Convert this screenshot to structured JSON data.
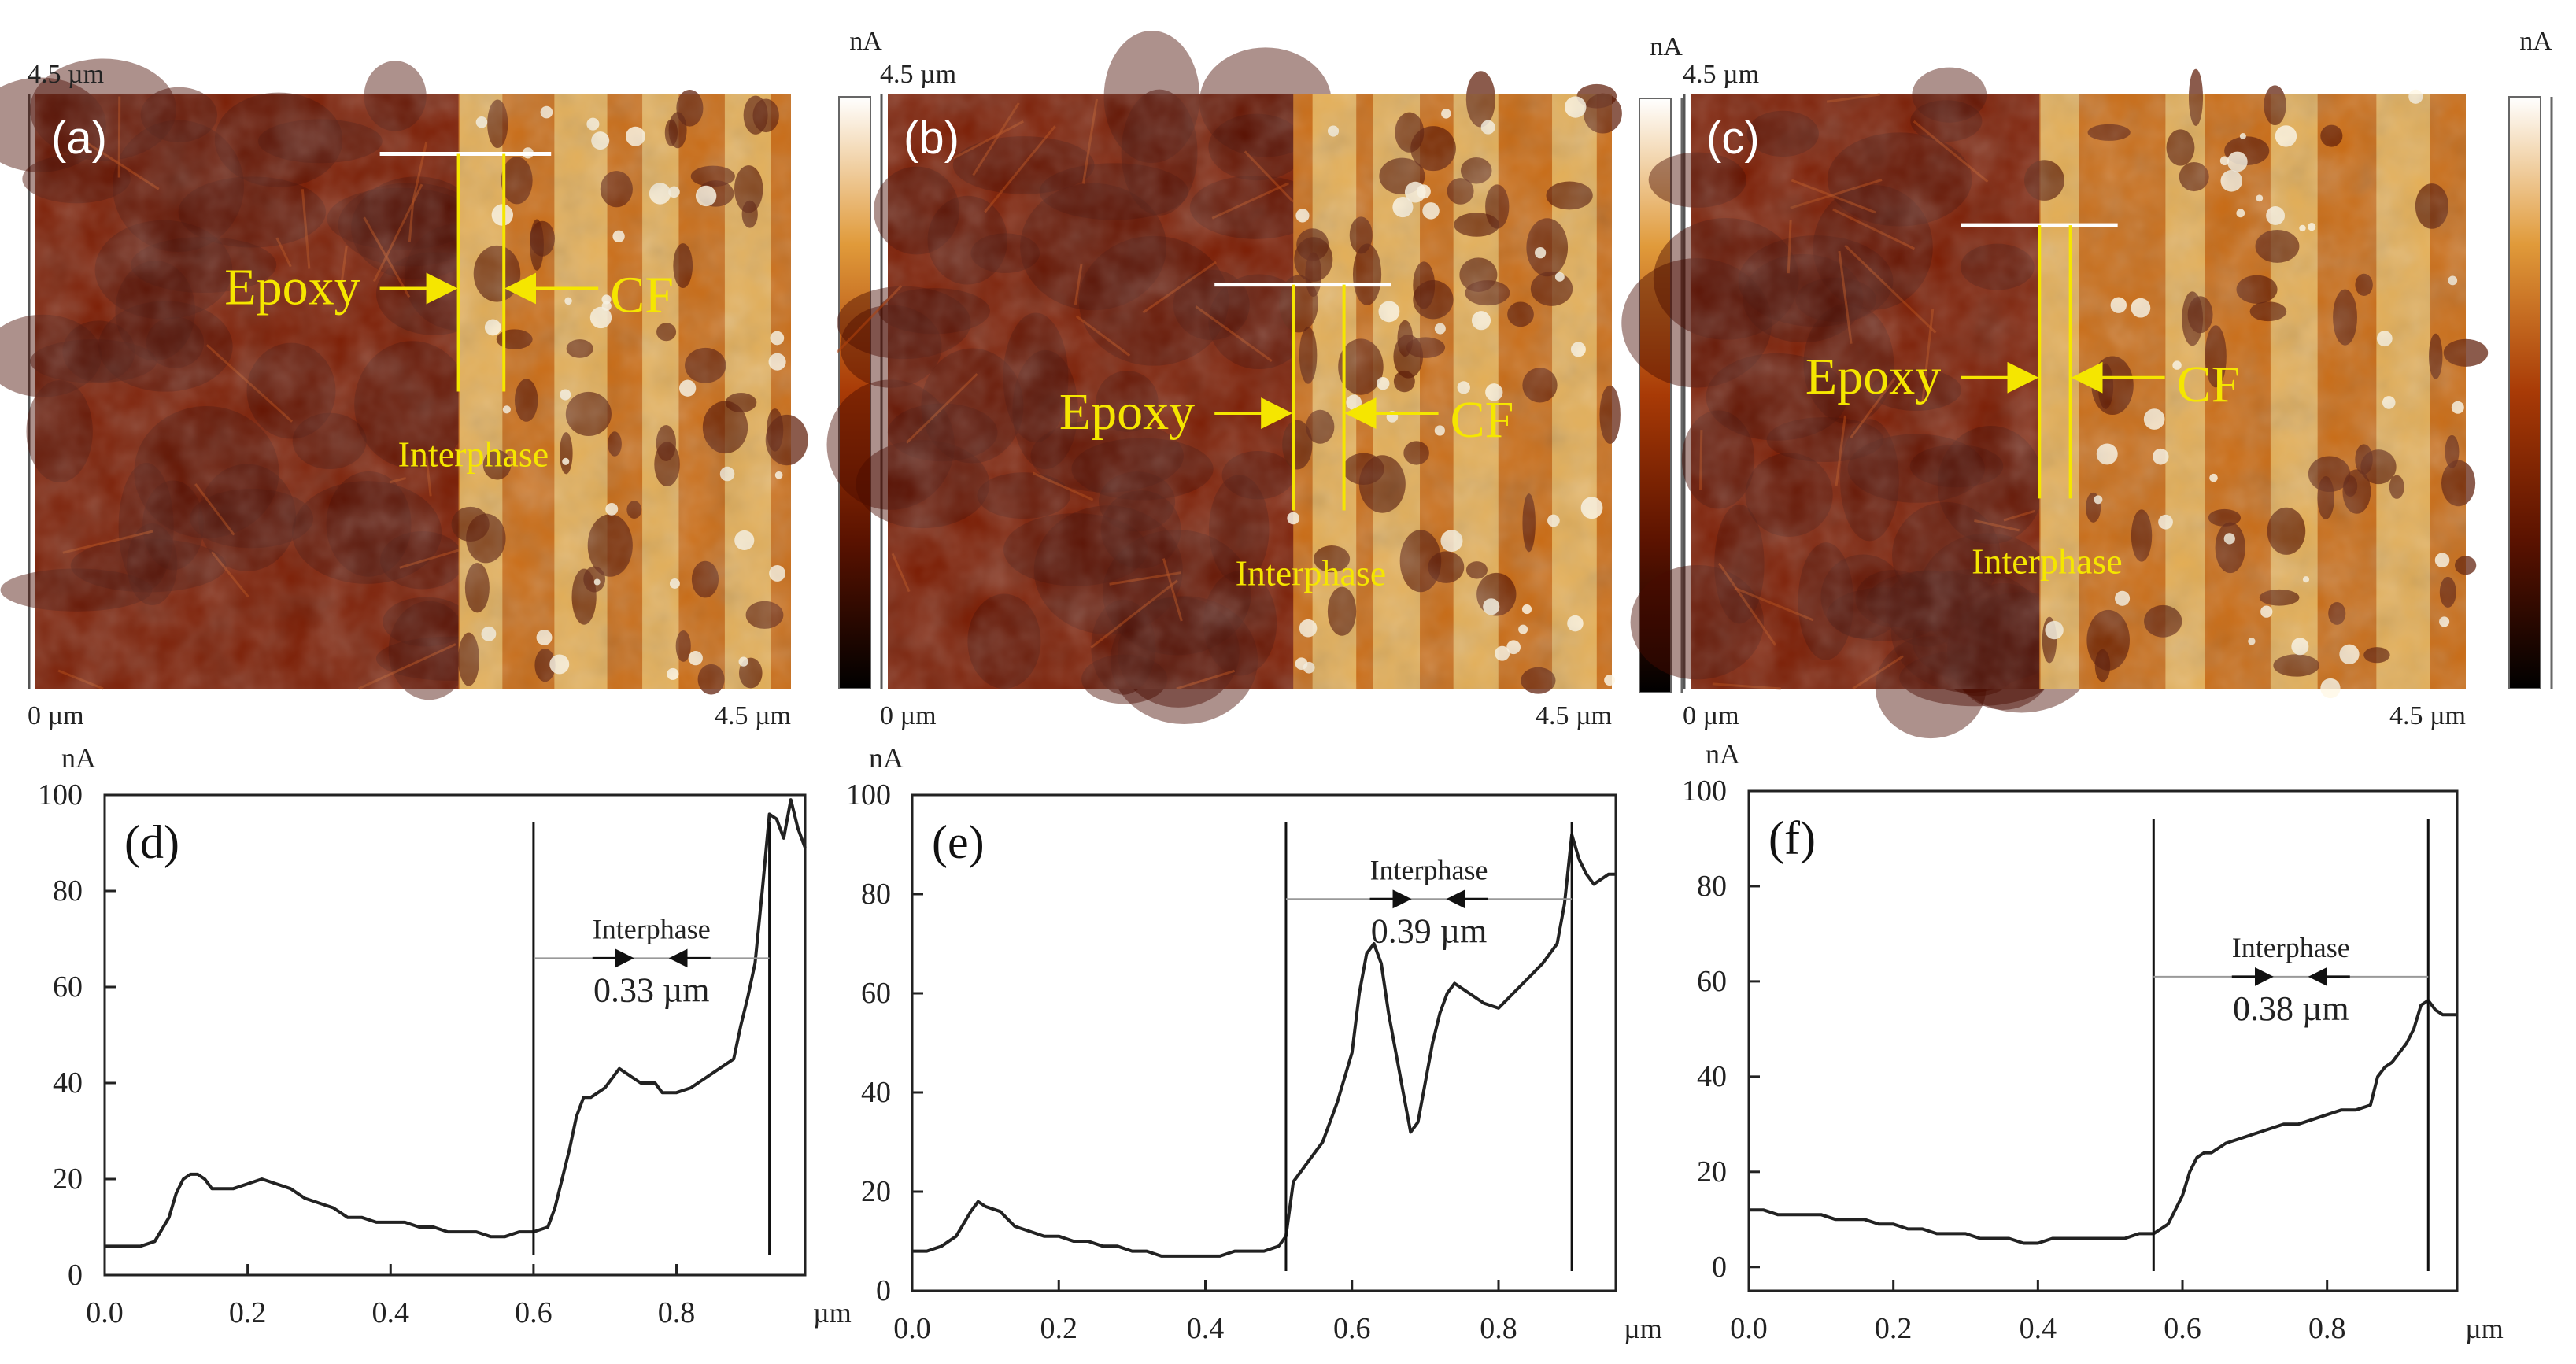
{
  "palette": {
    "afm_dark": "#1a0300",
    "afm_mid": "#7a1a00",
    "afm_orange": "#c96a12",
    "afm_light": "#f3d37a",
    "afm_white": "#fff8e6",
    "annotation": "#f5e600",
    "marker_white": "#ffffff",
    "plot_line": "#222222"
  },
  "maps": [
    {
      "panel_label": "(a)",
      "axis_top": "4.5 µm",
      "axis_origin": "0 µm",
      "axis_right": "4.5 µm",
      "colorbar_unit": "nA",
      "label_left": "Epoxy",
      "label_right": "CF",
      "label_bottom": "Interphase"
    },
    {
      "panel_label": "(b)",
      "axis_top": "4.5 µm",
      "axis_origin": "0 µm",
      "axis_right": "4.5 µm",
      "colorbar_unit": "nA",
      "label_left": "Epoxy",
      "label_right": "CF",
      "label_bottom": "Interphase"
    },
    {
      "panel_label": "(c)",
      "axis_top": "4.5 µm",
      "axis_origin": "0 µm",
      "axis_right": "4.5 µm",
      "colorbar_unit": "nA",
      "label_left": "Epoxy",
      "label_right": "CF",
      "label_bottom": "Interphase"
    }
  ],
  "chart_data": [
    {
      "type": "line",
      "panel_label": "(d)",
      "ylabel": "nA",
      "xunit": "µm",
      "xlim": [
        0.0,
        0.98
      ],
      "ylim": [
        0,
        100
      ],
      "xticks": [
        "0.0",
        "0.2",
        "0.4",
        "0.6",
        "0.8"
      ],
      "yticks": [
        "0",
        "20",
        "40",
        "60",
        "80",
        "100"
      ],
      "interphase_label": "Interphase",
      "interphase_width": "0.33 µm",
      "interphase_bounds": [
        0.6,
        0.93
      ],
      "interphase_arrow_y": 66,
      "x": [
        0.0,
        0.02,
        0.05,
        0.07,
        0.09,
        0.1,
        0.11,
        0.12,
        0.13,
        0.14,
        0.15,
        0.16,
        0.18,
        0.2,
        0.22,
        0.24,
        0.26,
        0.28,
        0.3,
        0.32,
        0.34,
        0.36,
        0.38,
        0.4,
        0.42,
        0.44,
        0.46,
        0.48,
        0.5,
        0.52,
        0.54,
        0.56,
        0.58,
        0.6,
        0.62,
        0.63,
        0.64,
        0.65,
        0.66,
        0.67,
        0.68,
        0.7,
        0.72,
        0.73,
        0.74,
        0.75,
        0.77,
        0.78,
        0.8,
        0.82,
        0.84,
        0.86,
        0.88,
        0.89,
        0.9,
        0.91,
        0.92,
        0.93,
        0.94,
        0.95,
        0.96,
        0.97,
        0.98
      ],
      "y": [
        6,
        6,
        6,
        7,
        12,
        17,
        20,
        21,
        21,
        20,
        18,
        18,
        18,
        19,
        20,
        19,
        18,
        16,
        15,
        14,
        12,
        12,
        11,
        11,
        11,
        10,
        10,
        9,
        9,
        9,
        8,
        8,
        9,
        9,
        10,
        14,
        20,
        26,
        33,
        37,
        37,
        39,
        43,
        42,
        41,
        40,
        40,
        38,
        38,
        39,
        41,
        43,
        45,
        52,
        58,
        65,
        80,
        96,
        95,
        91,
        99,
        93,
        89
      ]
    },
    {
      "type": "line",
      "panel_label": "(e)",
      "ylabel": "nA",
      "xunit": "µm",
      "xlim": [
        0.0,
        0.96
      ],
      "ylim": [
        0,
        100
      ],
      "xticks": [
        "0.0",
        "0.2",
        "0.4",
        "0.6",
        "0.8"
      ],
      "yticks": [
        "0",
        "20",
        "40",
        "60",
        "80",
        "100"
      ],
      "interphase_label": "Interphase",
      "interphase_width": "0.39 µm",
      "interphase_bounds": [
        0.51,
        0.9
      ],
      "interphase_arrow_y": 79,
      "x": [
        0.0,
        0.02,
        0.04,
        0.06,
        0.08,
        0.09,
        0.1,
        0.12,
        0.14,
        0.16,
        0.18,
        0.2,
        0.22,
        0.24,
        0.26,
        0.28,
        0.3,
        0.32,
        0.34,
        0.36,
        0.38,
        0.4,
        0.42,
        0.44,
        0.46,
        0.48,
        0.5,
        0.51,
        0.52,
        0.54,
        0.56,
        0.58,
        0.6,
        0.61,
        0.62,
        0.63,
        0.64,
        0.65,
        0.66,
        0.67,
        0.68,
        0.69,
        0.7,
        0.71,
        0.72,
        0.73,
        0.74,
        0.75,
        0.76,
        0.78,
        0.8,
        0.82,
        0.84,
        0.86,
        0.88,
        0.89,
        0.9,
        0.91,
        0.92,
        0.93,
        0.94,
        0.95,
        0.96
      ],
      "y": [
        8,
        8,
        9,
        11,
        16,
        18,
        17,
        16,
        13,
        12,
        11,
        11,
        10,
        10,
        9,
        9,
        8,
        8,
        7,
        7,
        7,
        7,
        7,
        8,
        8,
        8,
        9,
        11,
        22,
        26,
        30,
        38,
        48,
        60,
        68,
        70,
        66,
        56,
        48,
        40,
        32,
        34,
        42,
        50,
        56,
        60,
        62,
        61,
        60,
        58,
        57,
        60,
        63,
        66,
        70,
        78,
        92,
        87,
        84,
        82,
        83,
        84,
        84
      ]
    },
    {
      "type": "line",
      "panel_label": "(f)",
      "ylabel": "nA",
      "xunit": "µm",
      "xlim": [
        0.0,
        0.98
      ],
      "ylim": [
        -5,
        100
      ],
      "xticks": [
        "0.0",
        "0.2",
        "0.4",
        "0.6",
        "0.8"
      ],
      "yticks": [
        "0",
        "20",
        "40",
        "60",
        "80",
        "100"
      ],
      "interphase_label": "Interphase",
      "interphase_width": "0.38 µm",
      "interphase_bounds": [
        0.56,
        0.94
      ],
      "interphase_arrow_y": 61,
      "x": [
        0.0,
        0.02,
        0.04,
        0.06,
        0.08,
        0.1,
        0.12,
        0.14,
        0.16,
        0.18,
        0.2,
        0.22,
        0.24,
        0.26,
        0.28,
        0.3,
        0.32,
        0.34,
        0.36,
        0.38,
        0.4,
        0.42,
        0.44,
        0.46,
        0.48,
        0.5,
        0.52,
        0.54,
        0.56,
        0.58,
        0.6,
        0.61,
        0.62,
        0.63,
        0.64,
        0.66,
        0.68,
        0.7,
        0.72,
        0.74,
        0.76,
        0.78,
        0.8,
        0.82,
        0.84,
        0.86,
        0.87,
        0.88,
        0.89,
        0.9,
        0.91,
        0.92,
        0.93,
        0.94,
        0.95,
        0.96,
        0.98
      ],
      "y": [
        12,
        12,
        11,
        11,
        11,
        11,
        10,
        10,
        10,
        9,
        9,
        8,
        8,
        7,
        7,
        7,
        6,
        6,
        6,
        5,
        5,
        6,
        6,
        6,
        6,
        6,
        6,
        7,
        7,
        9,
        15,
        20,
        23,
        24,
        24,
        26,
        27,
        28,
        29,
        30,
        30,
        31,
        32,
        33,
        33,
        34,
        40,
        42,
        43,
        45,
        47,
        50,
        55,
        56,
        54,
        53,
        53
      ]
    }
  ]
}
